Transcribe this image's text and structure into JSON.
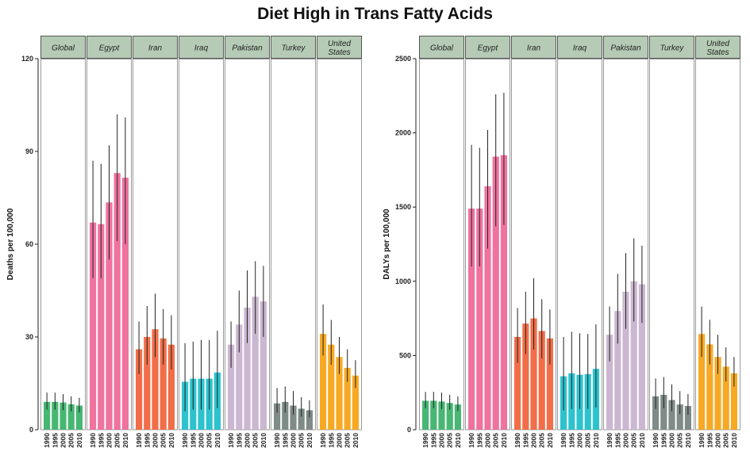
{
  "title": "Diet High in Trans Fatty Acids",
  "chart_data": [
    {
      "type": "bar",
      "ylabel": "Deaths per 100,000",
      "ylim": [
        0,
        120
      ],
      "yticks": [
        0,
        30,
        60,
        90,
        120
      ],
      "years": [
        "1990",
        "1995",
        "2000",
        "2005",
        "2010"
      ],
      "facets": [
        {
          "name": "Global",
          "label_lines": [
            "Global"
          ],
          "color": "#3db36b",
          "values": [
            9,
            9,
            8.8,
            8.2,
            7.8
          ],
          "lower": [
            6.5,
            6.5,
            6.3,
            5.9,
            5.6
          ],
          "upper": [
            12,
            12,
            11.5,
            10.8,
            10.3
          ]
        },
        {
          "name": "Egypt",
          "label_lines": [
            "Egypt"
          ],
          "color": "#ee6a9a",
          "values": [
            67,
            66.5,
            73.5,
            83,
            81.5
          ],
          "lower": [
            49,
            49,
            55,
            61,
            60
          ],
          "upper": [
            87,
            86,
            92,
            102,
            101
          ]
        },
        {
          "name": "Iran",
          "label_lines": [
            "Iran"
          ],
          "color": "#f0663f",
          "values": [
            26,
            30,
            32.5,
            29.5,
            27.5
          ],
          "lower": [
            18,
            21,
            23.5,
            21,
            19.5
          ],
          "upper": [
            35,
            40,
            44,
            39,
            37
          ]
        },
        {
          "name": "Iraq",
          "label_lines": [
            "Iraq"
          ],
          "color": "#22c0cb",
          "values": [
            15.5,
            16.5,
            16.5,
            16.5,
            18.5
          ],
          "lower": [
            6,
            6.5,
            6.5,
            6.5,
            7
          ],
          "upper": [
            28,
            28.5,
            29,
            29,
            32
          ]
        },
        {
          "name": "Pakistan",
          "label_lines": [
            "Pakistan"
          ],
          "color": "#c8b3cf",
          "values": [
            27.5,
            34,
            39.5,
            43,
            41.5
          ],
          "lower": [
            20,
            25,
            28,
            31,
            30
          ],
          "upper": [
            35,
            45,
            51.5,
            54.5,
            53
          ]
        },
        {
          "name": "Turkey",
          "label_lines": [
            "Turkey"
          ],
          "color": "#778580",
          "values": [
            8.5,
            9,
            7.8,
            6.8,
            6.3
          ],
          "lower": [
            5.5,
            5.5,
            4.9,
            4.2,
            4
          ],
          "upper": [
            13.5,
            14,
            12.5,
            10.5,
            9.5
          ]
        },
        {
          "name": "United States",
          "label_lines": [
            "United",
            "States"
          ],
          "color": "#f7a418",
          "values": [
            31,
            27.5,
            23.5,
            20,
            17.5
          ],
          "lower": [
            24,
            21,
            18,
            15.5,
            13.5
          ],
          "upper": [
            40.5,
            35.5,
            30,
            26,
            22.5
          ]
        }
      ]
    },
    {
      "type": "bar",
      "ylabel": "DALYs per 100,000",
      "ylim": [
        0,
        2500
      ],
      "yticks": [
        0,
        500,
        1000,
        1500,
        2000,
        2500
      ],
      "years": [
        "1990",
        "1995",
        "2000",
        "2005",
        "2010"
      ],
      "facets": [
        {
          "name": "Global",
          "label_lines": [
            "Global"
          ],
          "color": "#3db36b",
          "values": [
            195,
            195,
            190,
            180,
            170
          ],
          "lower": [
            145,
            145,
            140,
            135,
            125
          ],
          "upper": [
            255,
            255,
            250,
            235,
            225
          ]
        },
        {
          "name": "Egypt",
          "label_lines": [
            "Egypt"
          ],
          "color": "#ee6a9a",
          "values": [
            1490,
            1490,
            1640,
            1840,
            1850
          ],
          "lower": [
            1100,
            1100,
            1220,
            1370,
            1380
          ],
          "upper": [
            1920,
            1900,
            2020,
            2260,
            2270
          ]
        },
        {
          "name": "Iran",
          "label_lines": [
            "Iran"
          ],
          "color": "#f0663f",
          "values": [
            625,
            715,
            750,
            665,
            615
          ],
          "lower": [
            450,
            510,
            540,
            480,
            440
          ],
          "upper": [
            820,
            930,
            1020,
            880,
            810
          ]
        },
        {
          "name": "Iraq",
          "label_lines": [
            "Iraq"
          ],
          "color": "#22c0cb",
          "values": [
            360,
            380,
            370,
            375,
            410
          ],
          "lower": [
            130,
            140,
            140,
            140,
            150
          ],
          "upper": [
            625,
            660,
            650,
            645,
            710
          ]
        },
        {
          "name": "Pakistan",
          "label_lines": [
            "Pakistan"
          ],
          "color": "#c8b3cf",
          "values": [
            640,
            800,
            930,
            1000,
            980
          ],
          "lower": [
            460,
            580,
            680,
            730,
            720
          ],
          "upper": [
            830,
            1050,
            1190,
            1290,
            1240
          ]
        },
        {
          "name": "Turkey",
          "label_lines": [
            "Turkey"
          ],
          "color": "#778580",
          "values": [
            225,
            235,
            200,
            170,
            160
          ],
          "lower": [
            140,
            145,
            125,
            105,
            100
          ],
          "upper": [
            345,
            355,
            305,
            260,
            240
          ]
        },
        {
          "name": "United States",
          "label_lines": [
            "United",
            "States"
          ],
          "color": "#f7a418",
          "values": [
            645,
            575,
            490,
            425,
            380
          ],
          "lower": [
            490,
            440,
            375,
            325,
            290
          ],
          "upper": [
            830,
            740,
            640,
            555,
            490
          ]
        }
      ]
    }
  ]
}
